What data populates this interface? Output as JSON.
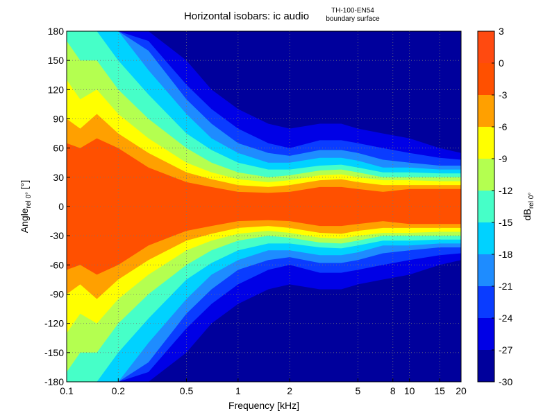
{
  "chart_data": {
    "type": "contour",
    "title": "Horizontal isobars: ic audio",
    "annotations": [
      "TH-100-EN54",
      "boundary surface"
    ],
    "x_label": "Frequency [kHz]",
    "y_label": "Angle",
    "y_label_sub": "rel 0°",
    "y_label_unit": " [°]",
    "log_x": true,
    "grid": true,
    "xlim": [
      0.1,
      20
    ],
    "xticks": [
      0.1,
      0.2,
      0.5,
      1,
      2,
      5,
      8,
      10,
      15,
      20
    ],
    "ylim": [
      -180,
      180
    ],
    "yticks": [
      -180,
      -150,
      -120,
      -90,
      -60,
      -30,
      0,
      30,
      60,
      90,
      120,
      150,
      180
    ],
    "x": [
      0.1,
      0.12,
      0.15,
      0.2,
      0.3,
      0.5,
      0.7,
      1,
      1.5,
      2,
      3,
      4,
      5,
      7,
      10,
      15,
      20
    ],
    "contours": [
      {
        "level": -27,
        "values": [
          180,
          180,
          180,
          180,
          180,
          150,
          120,
          100,
          85,
          80,
          85,
          85,
          80,
          75,
          70,
          60,
          55
        ]
      },
      {
        "level": -24,
        "values": [
          180,
          180,
          180,
          180,
          170,
          125,
          100,
          80,
          65,
          60,
          68,
          68,
          65,
          60,
          55,
          50,
          48
        ]
      },
      {
        "level": -21,
        "values": [
          180,
          180,
          180,
          180,
          160,
          110,
          85,
          65,
          55,
          52,
          58,
          58,
          55,
          48,
          45,
          42,
          42
        ]
      },
      {
        "level": -18,
        "values": [
          180,
          180,
          180,
          180,
          140,
          95,
          70,
          55,
          45,
          45,
          50,
          50,
          47,
          40,
          40,
          38,
          38
        ]
      },
      {
        "level": -15,
        "values": [
          180,
          180,
          180,
          150,
          115,
          75,
          58,
          45,
          38,
          38,
          42,
          43,
          40,
          35,
          35,
          34,
          34
        ]
      },
      {
        "level": -12,
        "values": [
          170,
          150,
          150,
          120,
          90,
          60,
          45,
          35,
          30,
          32,
          37,
          38,
          35,
          30,
          30,
          30,
          30
        ]
      },
      {
        "level": -9,
        "values": [
          130,
          110,
          120,
          95,
          70,
          45,
          35,
          28,
          25,
          27,
          32,
          33,
          30,
          27,
          27,
          26,
          26
        ]
      },
      {
        "level": -6,
        "values": [
          90,
          80,
          95,
          75,
          55,
          35,
          28,
          22,
          20,
          22,
          27,
          28,
          25,
          22,
          22,
          22,
          22
        ]
      },
      {
        "level": -3,
        "values": [
          65,
          60,
          70,
          60,
          40,
          25,
          20,
          15,
          14,
          15,
          20,
          20,
          18,
          15,
          18,
          18,
          18
        ]
      }
    ],
    "colorbar": {
      "label": "dB",
      "label_sub": "rel 0°",
      "lim": [
        -30,
        3
      ],
      "ticks": [
        -30,
        -27,
        -24,
        -21,
        -18,
        -15,
        -12,
        -9,
        -6,
        -3,
        0,
        3
      ],
      "colors": [
        "#00009c",
        "#0000e6",
        "#0a3cff",
        "#1e8cff",
        "#00d2ff",
        "#46ffc8",
        "#b4ff50",
        "#ffff00",
        "#ffa000",
        "#ff5000",
        "#ff4a10"
      ]
    }
  }
}
